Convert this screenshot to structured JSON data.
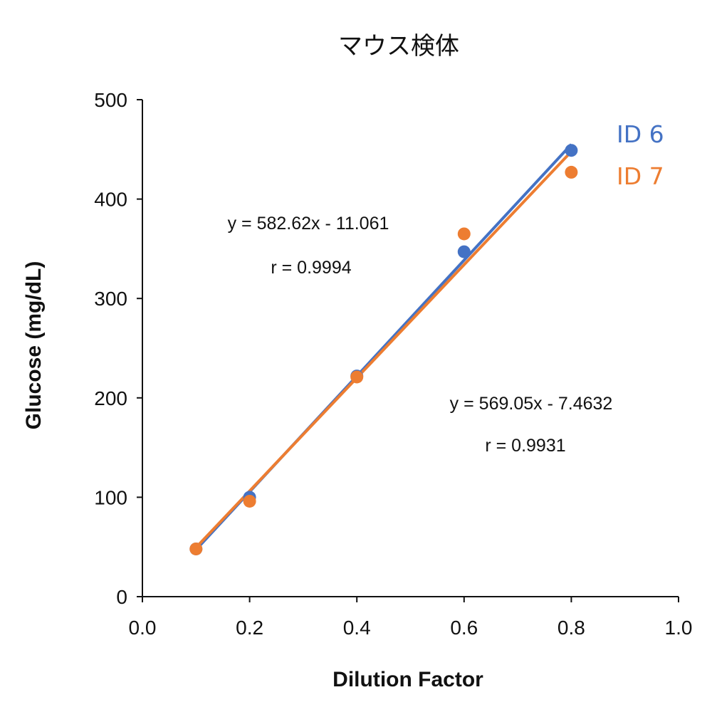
{
  "chart_data": {
    "type": "scatter",
    "title": "マウス検体",
    "xlabel": "Dilution Factor",
    "ylabel": "Glucose (mg/dL)",
    "xlim": [
      0,
      1
    ],
    "ylim": [
      0,
      500
    ],
    "xticks": [
      0,
      0.2,
      0.4,
      0.6,
      0.8,
      1.0
    ],
    "xtick_labels": [
      "0.0",
      "0.2",
      "0.4",
      "0.6",
      "0.8",
      "1.0"
    ],
    "yticks": [
      0,
      100,
      200,
      300,
      400,
      500
    ],
    "ytick_labels": [
      "0",
      "100",
      "200",
      "300",
      "400",
      "500"
    ],
    "grid": false,
    "legend_position": "top-right",
    "series": [
      {
        "name": "ID 6",
        "color": "#4472C4",
        "x": [
          0.1,
          0.2,
          0.4,
          0.6,
          0.8
        ],
        "y": [
          48,
          100,
          222,
          347,
          449
        ],
        "trendline": {
          "slope": 582.62,
          "intercept": -11.061
        },
        "equation": "y = 582.62x - 11.061",
        "r_label": "r = 0.9994"
      },
      {
        "name": "ID 7",
        "color": "#ED7D31",
        "x": [
          0.1,
          0.2,
          0.4,
          0.6,
          0.8
        ],
        "y": [
          48,
          96,
          221,
          365,
          427
        ],
        "trendline": {
          "slope": 569.05,
          "intercept": -7.4632
        },
        "equation": "y = 569.05x - 7.4632",
        "r_label": "r = 0.9931"
      }
    ]
  }
}
